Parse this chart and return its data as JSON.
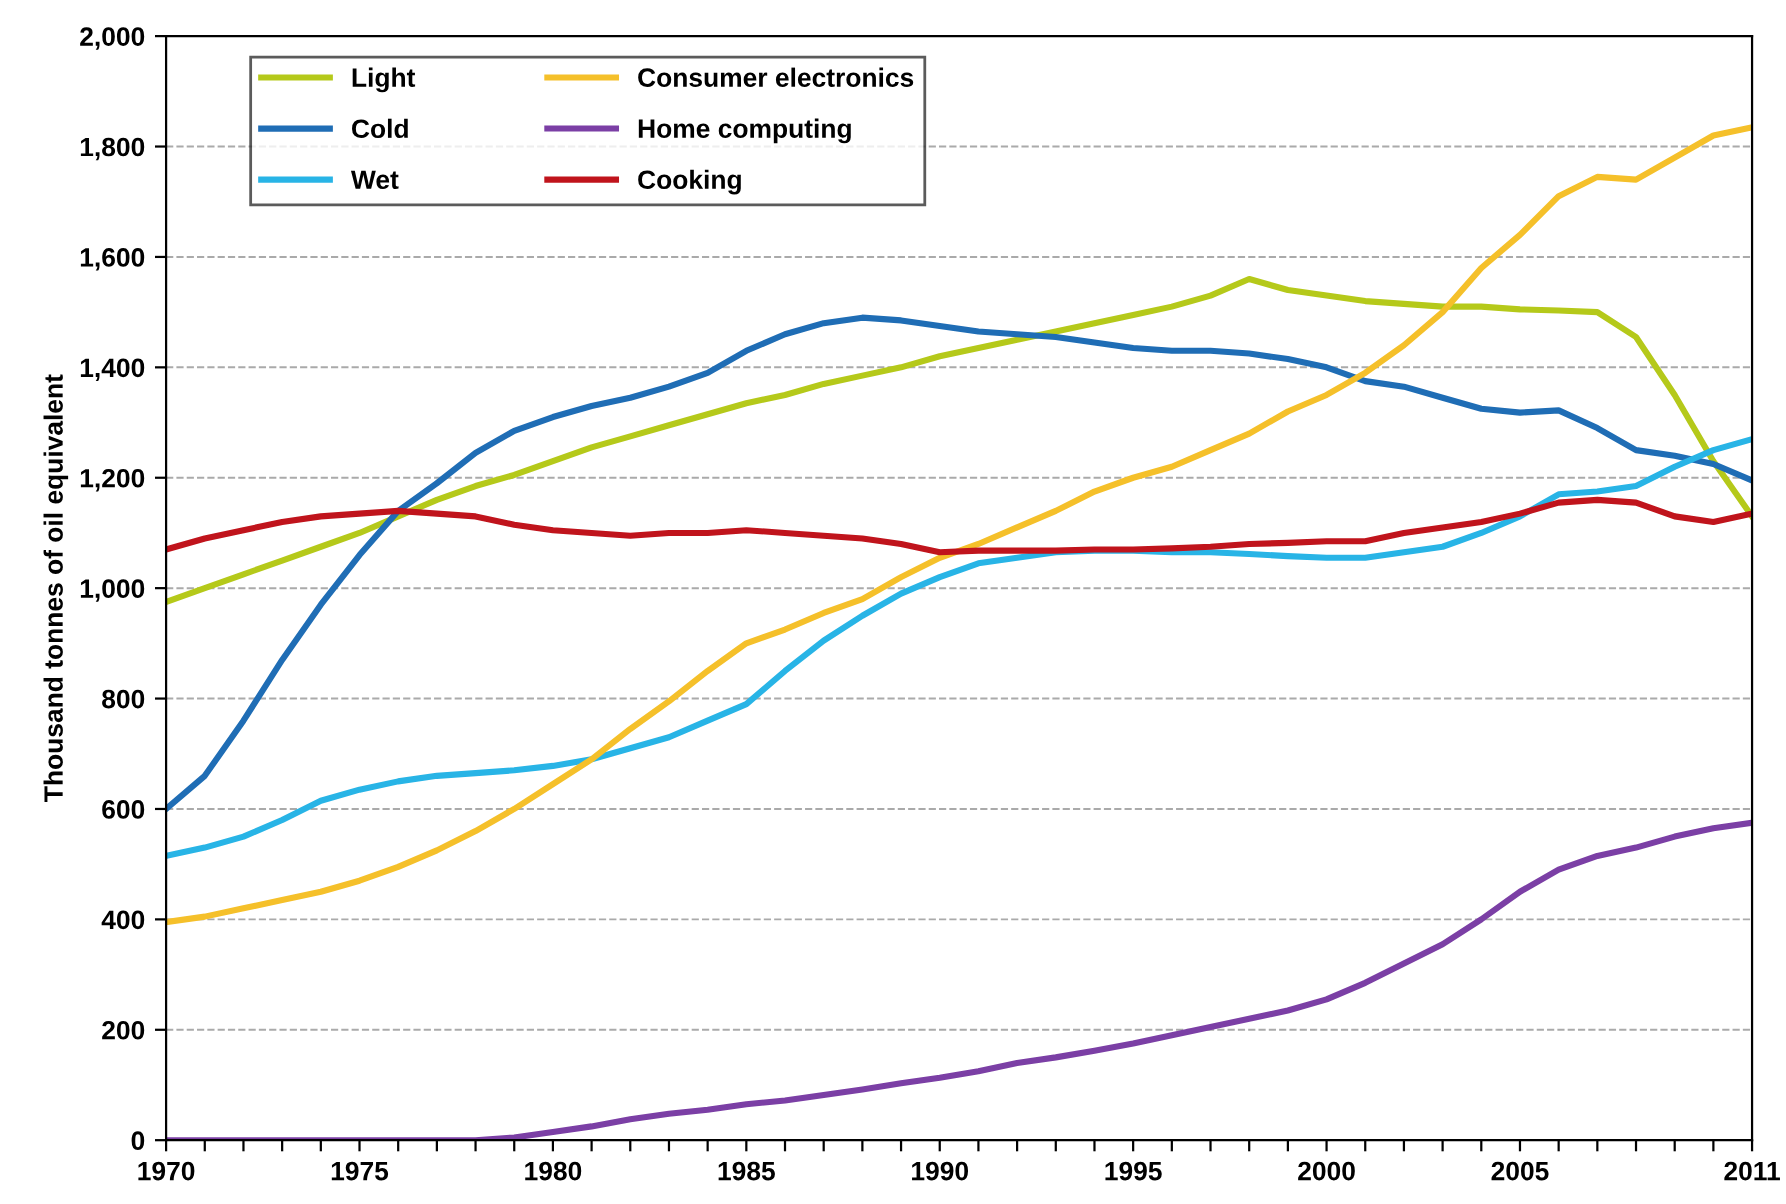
{
  "chart_data": {
    "type": "line",
    "ylabel": "Thousand tonnes of oil equivalent",
    "x": [
      1970,
      1971,
      1972,
      1973,
      1974,
      1975,
      1976,
      1977,
      1978,
      1979,
      1980,
      1981,
      1982,
      1983,
      1984,
      1985,
      1986,
      1987,
      1988,
      1989,
      1990,
      1991,
      1992,
      1993,
      1994,
      1995,
      1996,
      1997,
      1998,
      1999,
      2000,
      2001,
      2002,
      2003,
      2004,
      2005,
      2006,
      2007,
      2008,
      2009,
      2010,
      2011
    ],
    "series": [
      {
        "name": "Light",
        "color": "#b5c91a",
        "values": [
          975,
          1000,
          1025,
          1050,
          1075,
          1100,
          1130,
          1160,
          1185,
          1205,
          1230,
          1255,
          1275,
          1295,
          1315,
          1335,
          1350,
          1370,
          1385,
          1400,
          1420,
          1435,
          1450,
          1465,
          1480,
          1495,
          1510,
          1530,
          1560,
          1540,
          1530,
          1520,
          1515,
          1510,
          1510,
          1505,
          1503,
          1500,
          1455,
          1350,
          1230,
          1130
        ]
      },
      {
        "name": "Cold",
        "color": "#1f6db5",
        "values": [
          600,
          660,
          760,
          870,
          970,
          1060,
          1140,
          1190,
          1245,
          1285,
          1310,
          1330,
          1345,
          1365,
          1390,
          1430,
          1460,
          1480,
          1490,
          1485,
          1475,
          1465,
          1460,
          1455,
          1445,
          1435,
          1430,
          1430,
          1425,
          1415,
          1400,
          1375,
          1365,
          1345,
          1325,
          1318,
          1322,
          1290,
          1250,
          1240,
          1225,
          1195
        ]
      },
      {
        "name": "Wet",
        "color": "#28b4e6",
        "values": [
          515,
          530,
          550,
          580,
          615,
          635,
          650,
          660,
          665,
          670,
          678,
          690,
          710,
          730,
          760,
          790,
          850,
          905,
          950,
          990,
          1020,
          1045,
          1055,
          1065,
          1068,
          1068,
          1065,
          1065,
          1062,
          1058,
          1055,
          1055,
          1065,
          1075,
          1100,
          1130,
          1170,
          1175,
          1185,
          1220,
          1250,
          1270
        ]
      },
      {
        "name": "Consumer electronics",
        "color": "#f5c02a",
        "values": [
          395,
          405,
          420,
          435,
          450,
          470,
          495,
          525,
          560,
          600,
          645,
          690,
          745,
          795,
          850,
          900,
          925,
          955,
          980,
          1020,
          1055,
          1080,
          1110,
          1140,
          1175,
          1200,
          1220,
          1250,
          1280,
          1320,
          1350,
          1390,
          1440,
          1500,
          1580,
          1640,
          1710,
          1745,
          1740,
          1780,
          1820,
          1835
        ]
      },
      {
        "name": "Home computing",
        "color": "#7b3fa5",
        "values": [
          0,
          0,
          0,
          0,
          0,
          0,
          0,
          0,
          0,
          5,
          15,
          25,
          38,
          48,
          55,
          65,
          72,
          82,
          92,
          103,
          113,
          125,
          140,
          150,
          162,
          175,
          190,
          205,
          220,
          235,
          255,
          285,
          320,
          355,
          400,
          450,
          490,
          515,
          530,
          550,
          565,
          575
        ]
      },
      {
        "name": "Cooking",
        "color": "#c0141c",
        "values": [
          1070,
          1090,
          1105,
          1120,
          1130,
          1135,
          1140,
          1135,
          1130,
          1115,
          1105,
          1100,
          1095,
          1100,
          1100,
          1105,
          1100,
          1095,
          1090,
          1080,
          1065,
          1068,
          1068,
          1068,
          1070,
          1070,
          1072,
          1075,
          1080,
          1082,
          1085,
          1085,
          1100,
          1110,
          1120,
          1135,
          1155,
          1160,
          1155,
          1130,
          1120,
          1135
        ]
      }
    ],
    "xlim": [
      1970,
      2011
    ],
    "xticks": [
      1970,
      {
        "value": 1971,
        "label": null
      },
      {
        "value": 1972,
        "label": null
      },
      {
        "value": 1973,
        "label": null
      },
      {
        "value": 1974,
        "label": null
      },
      1975,
      {
        "value": 1976,
        "label": null
      },
      {
        "value": 1977,
        "label": null
      },
      {
        "value": 1978,
        "label": null
      },
      {
        "value": 1979,
        "label": null
      },
      1980,
      {
        "value": 1981,
        "label": null
      },
      {
        "value": 1982,
        "label": null
      },
      {
        "value": 1983,
        "label": null
      },
      {
        "value": 1984,
        "label": null
      },
      1985,
      {
        "value": 1986,
        "label": null
      },
      {
        "value": 1987,
        "label": null
      },
      {
        "value": 1988,
        "label": null
      },
      {
        "value": 1989,
        "label": null
      },
      1990,
      {
        "value": 1991,
        "label": null
      },
      {
        "value": 1992,
        "label": null
      },
      {
        "value": 1993,
        "label": null
      },
      {
        "value": 1994,
        "label": null
      },
      1995,
      {
        "value": 1996,
        "label": null
      },
      {
        "value": 1997,
        "label": null
      },
      {
        "value": 1998,
        "label": null
      },
      {
        "value": 1999,
        "label": null
      },
      2000,
      {
        "value": 2001,
        "label": null
      },
      {
        "value": 2002,
        "label": null
      },
      {
        "value": 2003,
        "label": null
      },
      {
        "value": 2004,
        "label": null
      },
      2005,
      {
        "value": 2006,
        "label": null
      },
      {
        "value": 2007,
        "label": null
      },
      {
        "value": 2008,
        "label": null
      },
      {
        "value": 2009,
        "label": null
      },
      {
        "value": 2010,
        "label": null
      },
      2011
    ],
    "ylim": [
      0,
      2000
    ],
    "yticks": [
      0,
      200,
      400,
      600,
      800,
      {
        "value": 1000,
        "label": "1,000"
      },
      {
        "value": 1200,
        "label": "1,200"
      },
      {
        "value": 1400,
        "label": "1,400"
      },
      {
        "value": 1600,
        "label": "1,600"
      },
      {
        "value": 1800,
        "label": "1,800"
      },
      {
        "value": 2000,
        "label": "2,000"
      }
    ],
    "grid": "y",
    "legend": "top left",
    "marker": "none",
    "line_style": "solid"
  }
}
